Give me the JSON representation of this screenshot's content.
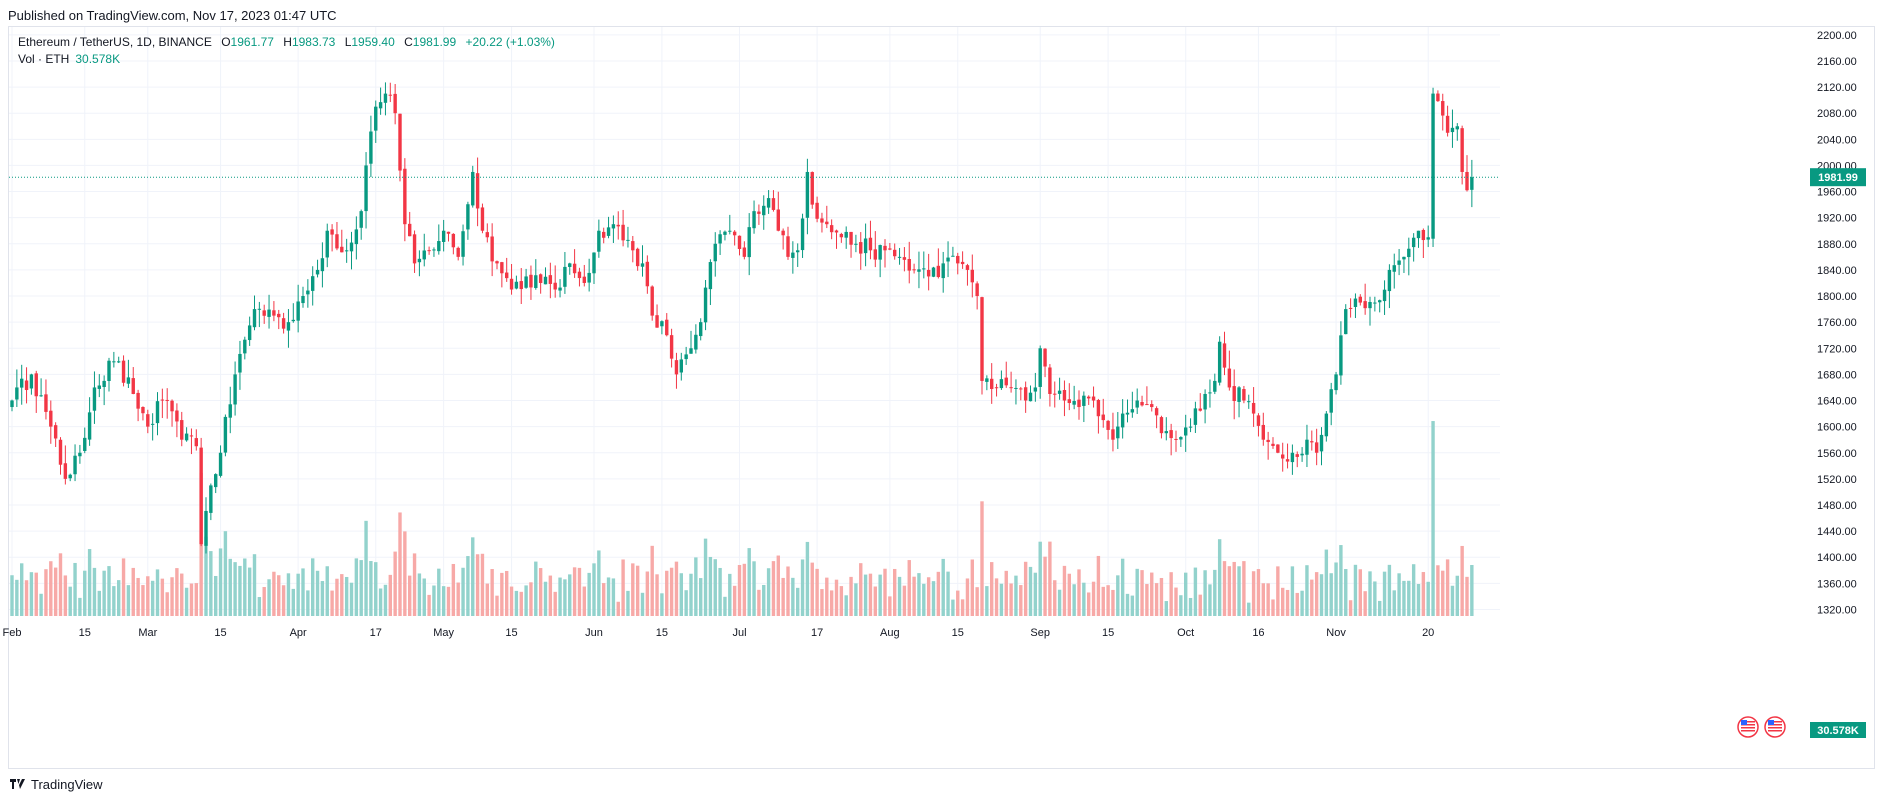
{
  "header": {
    "published": "Published on TradingView.com, Nov 17, 2023 01:47 UTC"
  },
  "legend": {
    "symbol": "Ethereum / TetherUS, 1D, BINANCE",
    "open_label": "O",
    "open": "1961.77",
    "high_label": "H",
    "high": "1983.73",
    "low_label": "L",
    "low": "1959.40",
    "close_label": "C",
    "close": "1981.99",
    "change": "+20.22 (+1.03%)",
    "vol_label": "Vol · ETH",
    "vol_value": "30.578K"
  },
  "footer": {
    "brand": "TradingView"
  },
  "colors": {
    "up": "#089981",
    "down": "#f23645",
    "vol_up": "#92d2cc",
    "vol_down": "#f7a9a7",
    "grid": "#f0f3fa"
  },
  "chart_data": {
    "type": "candlestick",
    "price_axis": {
      "ticks": [
        1320,
        1360,
        1400,
        1440,
        1480,
        1520,
        1560,
        1600,
        1640,
        1680,
        1720,
        1760,
        1800,
        1840,
        1880,
        1920,
        1960,
        2000,
        2040,
        2080,
        2120,
        2160,
        2200
      ],
      "range": [
        1310,
        2212
      ]
    },
    "time_axis": [
      "Feb",
      "15",
      "Mar",
      "15",
      "Apr",
      "17",
      "May",
      "15",
      "Jun",
      "15",
      "Jul",
      "17",
      "Aug",
      "15",
      "Sep",
      "15",
      "Oct",
      "16",
      "Nov",
      "20"
    ],
    "last_price": "1981.99",
    "last_volume": "30.578K",
    "anchors": [
      {
        "d": 0,
        "c": 1640
      },
      {
        "d": 4,
        "c": 1680
      },
      {
        "d": 8,
        "c": 1600
      },
      {
        "d": 11,
        "c": 1520
      },
      {
        "d": 14,
        "c": 1560
      },
      {
        "d": 17,
        "c": 1660
      },
      {
        "d": 21,
        "c": 1700
      },
      {
        "d": 25,
        "c": 1650
      },
      {
        "d": 28,
        "c": 1600
      },
      {
        "d": 31,
        "c": 1640
      },
      {
        "d": 35,
        "c": 1580
      },
      {
        "d": 38,
        "c": 1570
      },
      {
        "d": 39,
        "c": 1420
      },
      {
        "d": 41,
        "c": 1510
      },
      {
        "d": 43,
        "c": 1560
      },
      {
        "d": 46,
        "c": 1680
      },
      {
        "d": 50,
        "c": 1780
      },
      {
        "d": 54,
        "c": 1770
      },
      {
        "d": 57,
        "c": 1760
      },
      {
        "d": 60,
        "c": 1800
      },
      {
        "d": 63,
        "c": 1840
      },
      {
        "d": 65,
        "c": 1900
      },
      {
        "d": 69,
        "c": 1870
      },
      {
        "d": 72,
        "c": 1930
      },
      {
        "d": 73,
        "c": 2000
      },
      {
        "d": 75,
        "c": 2090
      },
      {
        "d": 77,
        "c": 2110
      },
      {
        "d": 79,
        "c": 2080
      },
      {
        "d": 81,
        "c": 1910
      },
      {
        "d": 83,
        "c": 1850
      },
      {
        "d": 86,
        "c": 1870
      },
      {
        "d": 89,
        "c": 1900
      },
      {
        "d": 92,
        "c": 1860
      },
      {
        "d": 95,
        "c": 1990
      },
      {
        "d": 97,
        "c": 1900
      },
      {
        "d": 100,
        "c": 1850
      },
      {
        "d": 103,
        "c": 1810
      },
      {
        "d": 106,
        "c": 1830
      },
      {
        "d": 109,
        "c": 1820
      },
      {
        "d": 112,
        "c": 1810
      },
      {
        "d": 115,
        "c": 1850
      },
      {
        "d": 118,
        "c": 1820
      },
      {
        "d": 121,
        "c": 1900
      },
      {
        "d": 124,
        "c": 1910
      },
      {
        "d": 128,
        "c": 1870
      },
      {
        "d": 130,
        "c": 1850
      },
      {
        "d": 132,
        "c": 1770
      },
      {
        "d": 135,
        "c": 1740
      },
      {
        "d": 137,
        "c": 1680
      },
      {
        "d": 140,
        "c": 1720
      },
      {
        "d": 142,
        "c": 1760
      },
      {
        "d": 145,
        "c": 1880
      },
      {
        "d": 148,
        "c": 1900
      },
      {
        "d": 151,
        "c": 1860
      },
      {
        "d": 153,
        "c": 1930
      },
      {
        "d": 156,
        "c": 1950
      },
      {
        "d": 158,
        "c": 1900
      },
      {
        "d": 160,
        "c": 1860
      },
      {
        "d": 162,
        "c": 1870
      },
      {
        "d": 164,
        "c": 1990
      },
      {
        "d": 165,
        "c": 1940
      },
      {
        "d": 168,
        "c": 1910
      },
      {
        "d": 171,
        "c": 1890
      },
      {
        "d": 174,
        "c": 1880
      },
      {
        "d": 177,
        "c": 1870
      },
      {
        "d": 180,
        "c": 1870
      },
      {
        "d": 183,
        "c": 1860
      },
      {
        "d": 186,
        "c": 1840
      },
      {
        "d": 189,
        "c": 1830
      },
      {
        "d": 192,
        "c": 1850
      },
      {
        "d": 195,
        "c": 1850
      },
      {
        "d": 197,
        "c": 1840
      },
      {
        "d": 199,
        "c": 1800
      },
      {
        "d": 200,
        "c": 1670
      },
      {
        "d": 203,
        "c": 1660
      },
      {
        "d": 206,
        "c": 1660
      },
      {
        "d": 209,
        "c": 1640
      },
      {
        "d": 211,
        "c": 1660
      },
      {
        "d": 212,
        "c": 1720
      },
      {
        "d": 214,
        "c": 1650
      },
      {
        "d": 217,
        "c": 1640
      },
      {
        "d": 220,
        "c": 1630
      },
      {
        "d": 223,
        "c": 1640
      },
      {
        "d": 225,
        "c": 1610
      },
      {
        "d": 227,
        "c": 1580
      },
      {
        "d": 229,
        "c": 1620
      },
      {
        "d": 232,
        "c": 1640
      },
      {
        "d": 235,
        "c": 1630
      },
      {
        "d": 237,
        "c": 1590
      },
      {
        "d": 240,
        "c": 1580
      },
      {
        "d": 243,
        "c": 1600
      },
      {
        "d": 246,
        "c": 1650
      },
      {
        "d": 248,
        "c": 1670
      },
      {
        "d": 249,
        "c": 1730
      },
      {
        "d": 251,
        "c": 1660
      },
      {
        "d": 254,
        "c": 1640
      },
      {
        "d": 256,
        "c": 1620
      },
      {
        "d": 258,
        "c": 1580
      },
      {
        "d": 261,
        "c": 1560
      },
      {
        "d": 264,
        "c": 1560
      },
      {
        "d": 267,
        "c": 1580
      },
      {
        "d": 269,
        "c": 1560
      },
      {
        "d": 271,
        "c": 1620
      },
      {
        "d": 273,
        "c": 1680
      },
      {
        "d": 275,
        "c": 1780
      },
      {
        "d": 278,
        "c": 1790
      },
      {
        "d": 281,
        "c": 1790
      },
      {
        "d": 284,
        "c": 1840
      },
      {
        "d": 287,
        "c": 1860
      },
      {
        "d": 290,
        "c": 1900
      },
      {
        "d": 292,
        "c": 1890
      },
      {
        "d": 293,
        "c": 2110
      },
      {
        "d": 296,
        "c": 2050
      },
      {
        "d": 298,
        "c": 2060
      },
      {
        "d": 299,
        "c": 1990
      },
      {
        "d": 300,
        "c": 1962
      },
      {
        "d": 301,
        "c": 1982
      }
    ]
  }
}
